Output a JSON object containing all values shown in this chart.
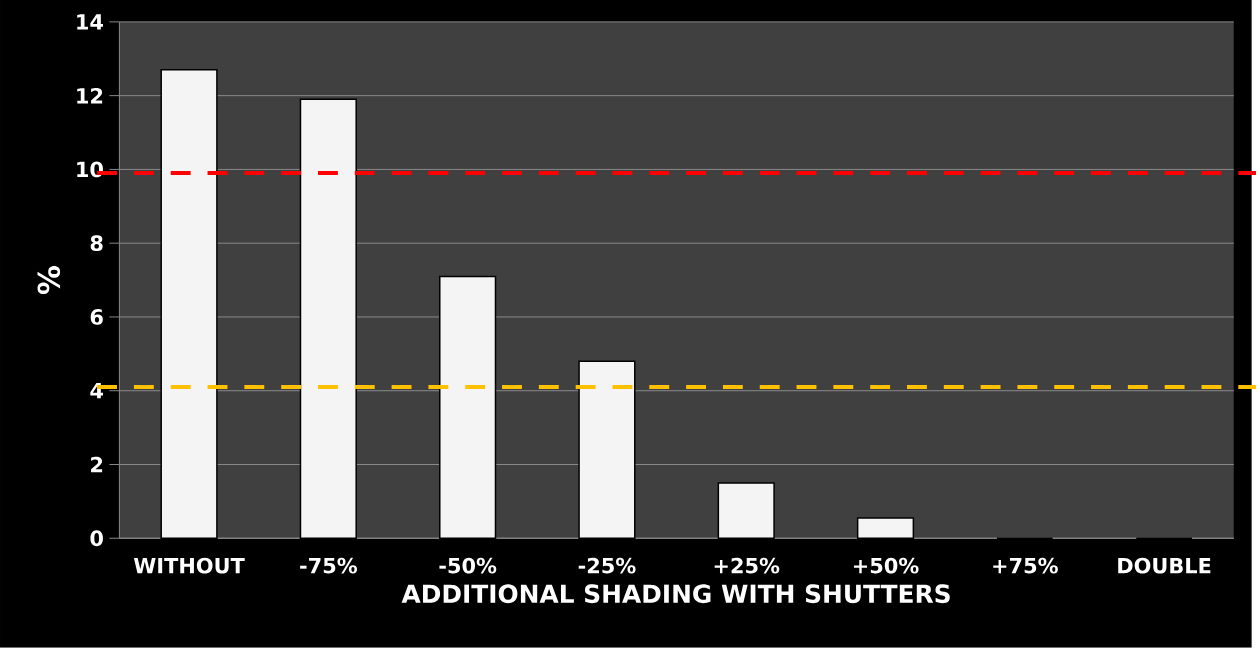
{
  "chart_data": {
    "type": "bar",
    "xlabel": "ADDITIONAL SHADING WITH SHUTTERS",
    "ylabel": "%",
    "categories": [
      "WITHOUT",
      "-75%",
      "-50%",
      "-25%",
      "+25%",
      "+50%",
      "+75%",
      "DOUBLE"
    ],
    "values": [
      12.7,
      11.9,
      7.1,
      4.8,
      1.5,
      0.55,
      0,
      0
    ],
    "colors": [
      "#f4f4f4",
      "#f4f4f4",
      "#f4f4f4",
      "#f4f4f4",
      "#f4f4f4",
      "#f4f4f4",
      "#000000",
      "#000000"
    ],
    "ylim": [
      0,
      14
    ],
    "yticks": [
      0,
      2,
      4,
      6,
      8,
      10,
      12,
      14
    ],
    "grid": "y",
    "ref_lines": [
      {
        "axis": "y",
        "value": 9.9,
        "color": "#ff0000",
        "line_style": "dashed"
      },
      {
        "axis": "y",
        "value": 4.1,
        "color": "#ffc000",
        "line_style": "dashed"
      }
    ]
  }
}
